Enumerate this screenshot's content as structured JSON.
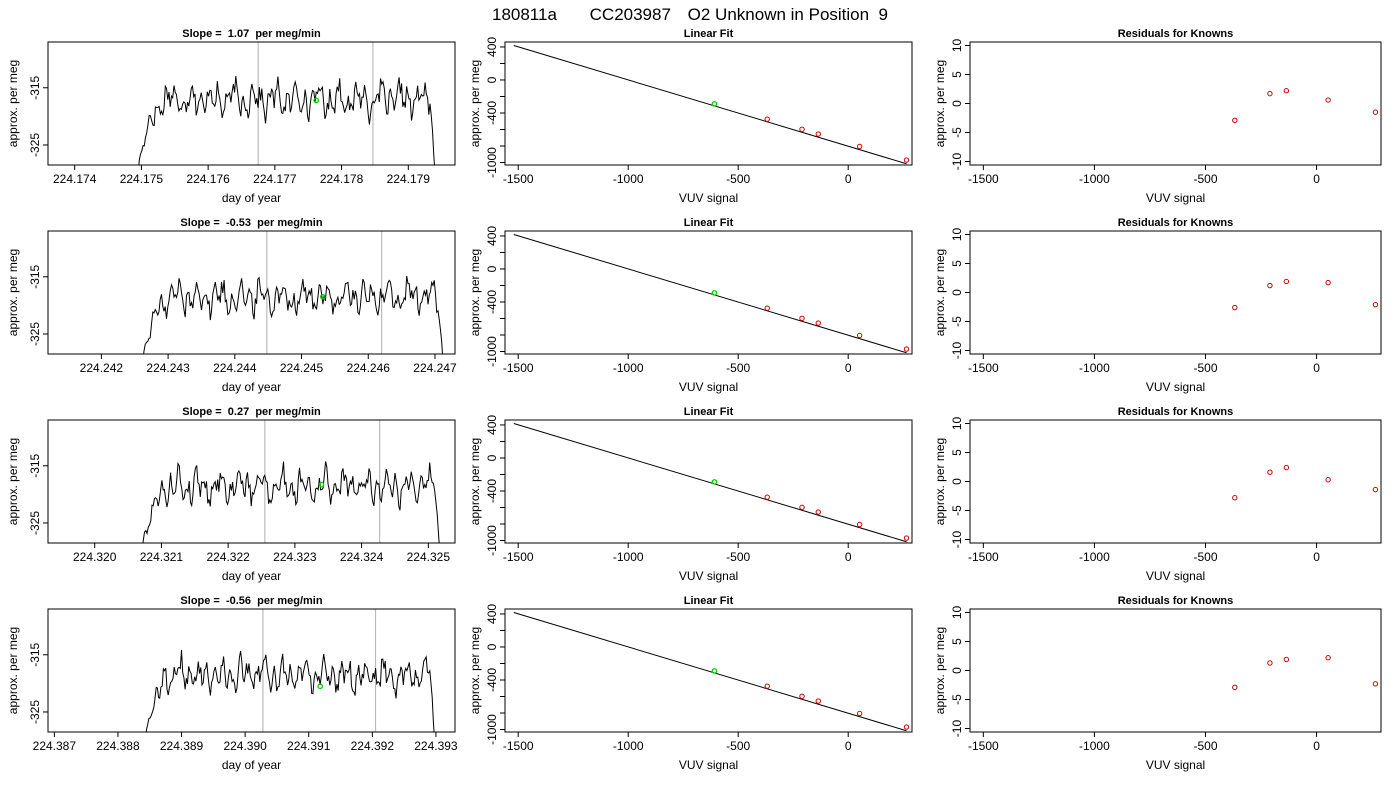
{
  "figure": {
    "title_parts": [
      "180811a",
      "CC203987",
      "O2 Unknown in Position  9"
    ]
  },
  "rows": [
    {
      "timeseries": {
        "title": "Slope =  1.07  per meg/min",
        "xlabel": "day of year",
        "ylabel": "approx. per meg",
        "xticks": [
          "224.174",
          "224.175",
          "224.176",
          "224.177",
          "224.178",
          "224.179"
        ],
        "yticks": [
          "-315",
          "-325"
        ]
      },
      "fit": {
        "title": "Linear Fit",
        "xlabel": "VUV signal",
        "ylabel": "approx. per meg",
        "xticks": [
          "-1500",
          "-1000",
          "-500",
          "0"
        ],
        "yticks": [
          "400",
          "0",
          "-400",
          "-1000"
        ]
      },
      "resid": {
        "title": "Residuals for Knowns",
        "xlabel": "VUV signal",
        "ylabel": "approx. per meg",
        "xticks": [
          "-1500",
          "-1000",
          "-500",
          "0"
        ],
        "yticks": [
          "10",
          "5",
          "0",
          "-5",
          "-10"
        ]
      }
    },
    {
      "timeseries": {
        "title": "Slope =  -0.53  per meg/min",
        "xlabel": "day of year",
        "ylabel": "approx. per meg",
        "xticks": [
          "224.242",
          "224.243",
          "224.244",
          "224.245",
          "224.246",
          "224.247"
        ],
        "yticks": [
          "-315",
          "-325"
        ]
      },
      "fit": {
        "title": "Linear Fit",
        "xlabel": "VUV signal",
        "ylabel": "approx. per meg",
        "xticks": [
          "-1500",
          "-1000",
          "-500",
          "0"
        ],
        "yticks": [
          "400",
          "0",
          "-400",
          "-1000"
        ]
      },
      "resid": {
        "title": "Residuals for Knowns",
        "xlabel": "VUV signal",
        "ylabel": "approx. per meg",
        "xticks": [
          "-1500",
          "-1000",
          "-500",
          "0"
        ],
        "yticks": [
          "10",
          "5",
          "0",
          "-5",
          "-10"
        ]
      }
    },
    {
      "timeseries": {
        "title": "Slope =  0.27  per meg/min",
        "xlabel": "day of year",
        "ylabel": "approx. per meg",
        "xticks": [
          "224.320",
          "224.321",
          "224.322",
          "224.323",
          "224.324",
          "224.325"
        ],
        "yticks": [
          "-315",
          "-325"
        ]
      },
      "fit": {
        "title": "Linear Fit",
        "xlabel": "VUV signal",
        "ylabel": "approx. per meg",
        "xticks": [
          "-1500",
          "-1000",
          "-500",
          "0"
        ],
        "yticks": [
          "400",
          "0",
          "-400",
          "-1000"
        ]
      },
      "resid": {
        "title": "Residuals for Knowns",
        "xlabel": "VUV signal",
        "ylabel": "approx. per meg",
        "xticks": [
          "-1500",
          "-1000",
          "-500",
          "0"
        ],
        "yticks": [
          "10",
          "5",
          "0",
          "-5",
          "-10"
        ]
      }
    },
    {
      "timeseries": {
        "title": "Slope =  -0.56  per meg/min",
        "xlabel": "day of year",
        "ylabel": "approx. per meg",
        "xticks": [
          "224.387",
          "224.388",
          "224.389",
          "224.390",
          "224.391",
          "224.392",
          "224.393"
        ],
        "yticks": [
          "-315",
          "-325"
        ]
      },
      "fit": {
        "title": "Linear Fit",
        "xlabel": "VUV signal",
        "ylabel": "approx. per meg",
        "xticks": [
          "-1500",
          "-1000",
          "-500",
          "0"
        ],
        "yticks": [
          "400",
          "0",
          "-400",
          "-1000"
        ]
      },
      "resid": {
        "title": "Residuals for Knowns",
        "xlabel": "VUV signal",
        "ylabel": "approx. per meg",
        "xticks": [
          "-1500",
          "-1000",
          "-500",
          "0"
        ],
        "yticks": [
          "10",
          "5",
          "0",
          "-5",
          "-10"
        ]
      }
    }
  ],
  "colors": {
    "line": "#000000",
    "known_points": "#cc0000",
    "unknown_point": "#00cc00",
    "marker_lines": "#bbbbbb"
  },
  "chart_data": [
    {
      "type": "line",
      "panel": "timeseries",
      "row": 1,
      "xlim": [
        224.1736,
        224.1797
      ],
      "ylim": [
        -328.5,
        -307
      ],
      "markers_x": [
        224.17675,
        224.17847
      ],
      "unknown_point": {
        "x": 224.17762,
        "y": -317.2
      },
      "x_start": 224.17495,
      "x_end": 224.1794,
      "base_level": -317,
      "ramp_from": -330,
      "series": [
        {
          "values": []
        }
      ]
    },
    {
      "type": "line",
      "panel": "timeseries",
      "row": 2,
      "xlim": [
        224.2412,
        224.2473
      ],
      "ylim": [
        -328.5,
        -307
      ],
      "markers_x": [
        224.24448,
        224.2462
      ],
      "unknown_point": {
        "x": 224.24532,
        "y": -318.5
      },
      "x_start": 224.24262,
      "x_end": 224.24712,
      "base_level": -318.5,
      "ramp_from": -330,
      "series": [
        {
          "values": []
        }
      ]
    },
    {
      "type": "line",
      "panel": "timeseries",
      "row": 3,
      "xlim": [
        224.3193,
        224.3254
      ],
      "ylim": [
        -328.5,
        -307
      ],
      "markers_x": [
        224.32255,
        224.32427
      ],
      "unknown_point": {
        "x": 224.3234,
        "y": -318.3
      },
      "x_start": 224.32071,
      "x_end": 224.32517,
      "base_level": -318.5,
      "ramp_from": -330,
      "series": [
        {
          "values": []
        }
      ]
    },
    {
      "type": "line",
      "panel": "timeseries",
      "row": 4,
      "xlim": [
        224.3869,
        224.3933
      ],
      "ylim": [
        -328.5,
        -307
      ],
      "markers_x": [
        224.39028,
        224.39205
      ],
      "unknown_point": {
        "x": 224.39118,
        "y": -320.5
      },
      "x_start": 224.38843,
      "x_end": 224.39298,
      "base_level": -318.5,
      "ramp_from": -330,
      "series": [
        {
          "values": []
        }
      ]
    },
    {
      "type": "scatter",
      "panel": "fit",
      "rows": [
        1,
        2,
        3,
        4
      ],
      "xlim": [
        -1560,
        290
      ],
      "ylim": [
        -1030,
        460
      ],
      "fit_line": {
        "x": [
          -1520,
          265
        ],
        "y": [
          418,
          -1015
        ]
      },
      "known": {
        "x": [
          -368,
          -210,
          -136,
          52,
          265
        ],
        "y": [
          -475,
          -598,
          -655,
          -806,
          -970
        ]
      },
      "unknown": {
        "x": [
          -608
        ],
        "y": [
          -290
        ]
      }
    },
    {
      "type": "scatter",
      "panel": "resid",
      "xlim": [
        -1560,
        290
      ],
      "ylim": [
        -10.6,
        10.6
      ],
      "known_x": [
        -368,
        -210,
        -136,
        52,
        265
      ],
      "residuals_by_row": [
        [
          -2.9,
          1.7,
          2.2,
          0.6,
          -1.5
        ],
        [
          -2.6,
          1.2,
          1.9,
          1.7,
          -2.1
        ],
        [
          -2.8,
          1.6,
          2.4,
          0.3,
          -1.4
        ],
        [
          -2.9,
          1.3,
          1.9,
          2.2,
          -2.3
        ]
      ]
    }
  ]
}
